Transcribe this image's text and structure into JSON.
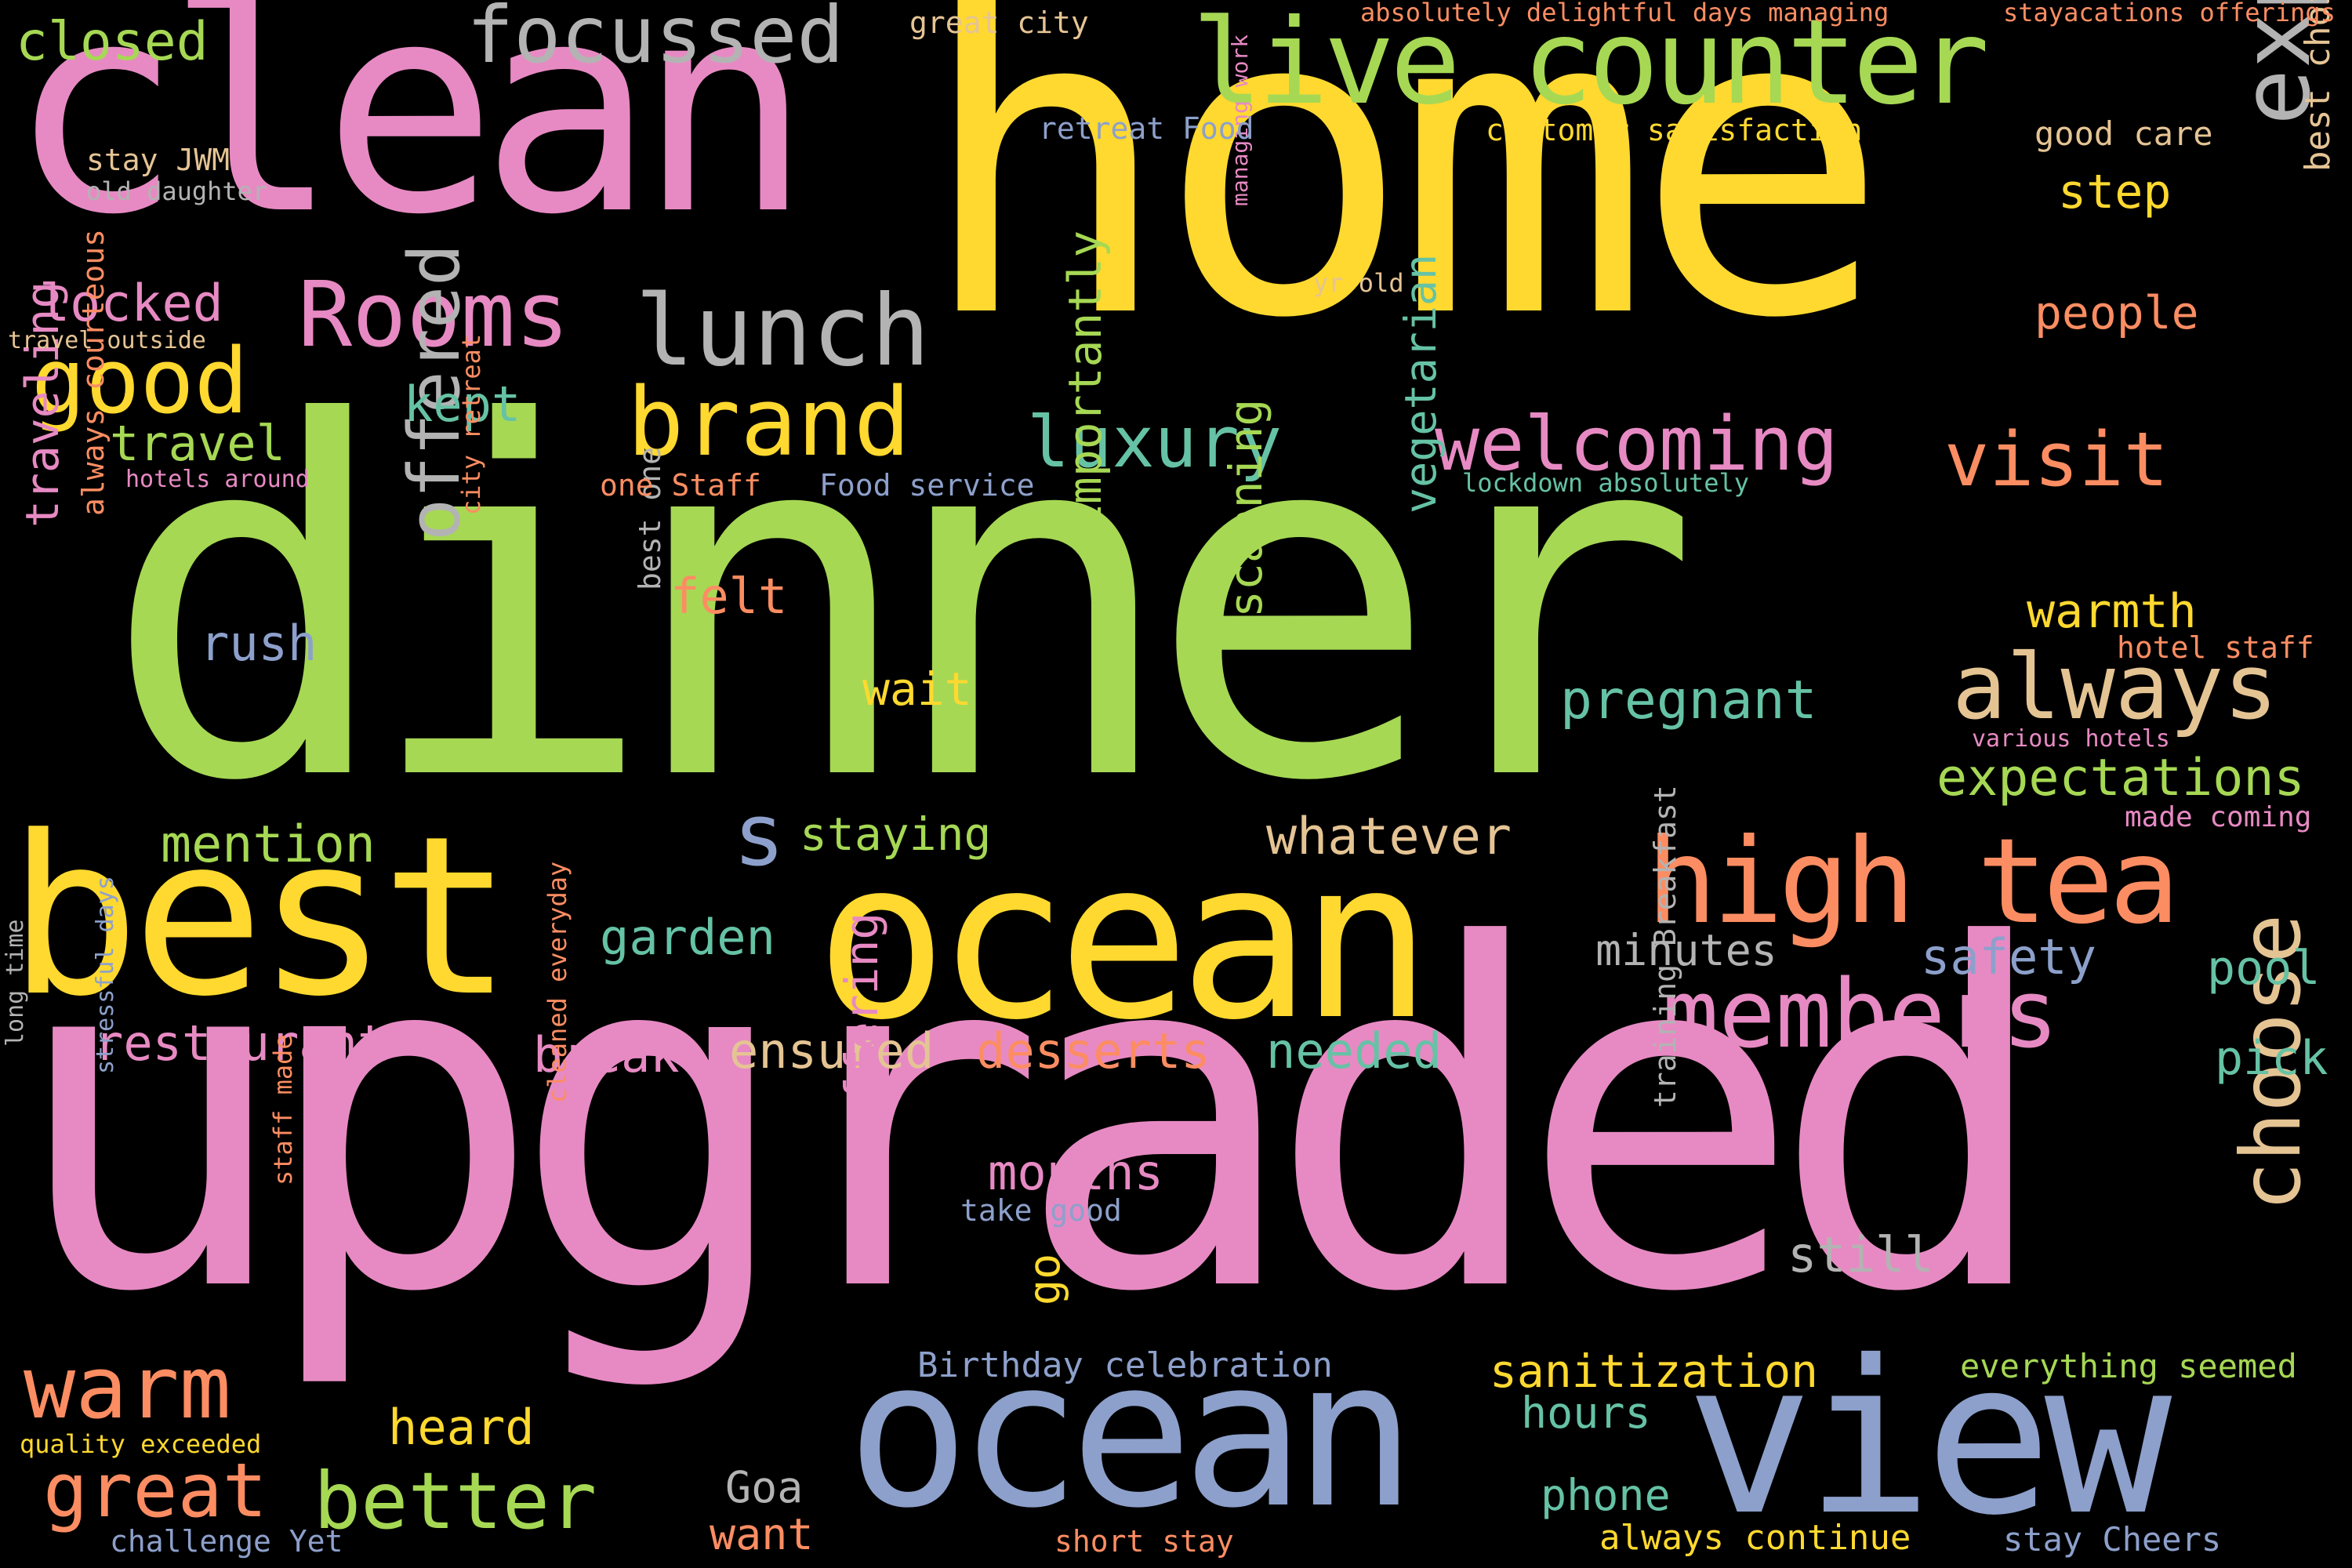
{
  "words": [
    {
      "text": "dinner",
      "color": "#a6d854"
    },
    {
      "text": "upgraded",
      "color": "#e78ac3"
    },
    {
      "text": "home",
      "color": "#ffd92f"
    },
    {
      "text": "clean",
      "color": "#e78ac3"
    },
    {
      "text": "best",
      "color": "#ffd92f"
    },
    {
      "text": "ocean",
      "color": "#ffd92f"
    },
    {
      "text": "ocean",
      "color": "#8da0cb"
    },
    {
      "text": "view",
      "color": "#8da0cb"
    },
    {
      "text": "live counter",
      "color": "#a6d854"
    },
    {
      "text": "high tea",
      "color": "#fc8d62"
    },
    {
      "text": "expensive",
      "color": "#b3b3b3"
    },
    {
      "text": "focussed",
      "color": "#b3b3b3"
    },
    {
      "text": "Rooms",
      "color": "#e78ac3"
    },
    {
      "text": "lunch",
      "color": "#b3b3b3"
    },
    {
      "text": "brand",
      "color": "#ffd92f"
    },
    {
      "text": "good",
      "color": "#ffd92f"
    },
    {
      "text": "welcoming",
      "color": "#e78ac3"
    },
    {
      "text": "luxury",
      "color": "#66c2a5"
    },
    {
      "text": "visit",
      "color": "#fc8d62"
    },
    {
      "text": "always",
      "color": "#e5c494"
    },
    {
      "text": "members",
      "color": "#e78ac3"
    },
    {
      "text": "choose",
      "color": "#e5c494"
    },
    {
      "text": "warm",
      "color": "#fc8d62"
    },
    {
      "text": "great",
      "color": "#fc8d62"
    },
    {
      "text": "better",
      "color": "#a6d854"
    },
    {
      "text": "offered",
      "color": "#b3b3b3"
    },
    {
      "text": "s",
      "color": "#8da0cb"
    },
    {
      "text": "closed",
      "color": "#a6d854"
    },
    {
      "text": "locked",
      "color": "#e78ac3"
    },
    {
      "text": "travel",
      "color": "#a6d854"
    },
    {
      "text": "kept",
      "color": "#66c2a5"
    },
    {
      "text": "pregnant",
      "color": "#66c2a5"
    },
    {
      "text": "expectations",
      "color": "#a6d854"
    },
    {
      "text": "warmth",
      "color": "#ffd92f"
    },
    {
      "text": "step",
      "color": "#ffd92f"
    },
    {
      "text": "people",
      "color": "#fc8d62"
    },
    {
      "text": "good care",
      "color": "#e5c494"
    },
    {
      "text": "best choice",
      "color": "#e5c494"
    },
    {
      "text": "felt",
      "color": "#fc8d62"
    },
    {
      "text": "rush",
      "color": "#8da0cb"
    },
    {
      "text": "wait",
      "color": "#ffd92f"
    },
    {
      "text": "mention",
      "color": "#a6d854"
    },
    {
      "text": "staying",
      "color": "#a6d854"
    },
    {
      "text": "whatever",
      "color": "#e5c494"
    },
    {
      "text": "garden",
      "color": "#66c2a5"
    },
    {
      "text": "minutes",
      "color": "#b3b3b3"
    },
    {
      "text": "safety",
      "color": "#8da0cb"
    },
    {
      "text": "pool",
      "color": "#66c2a5"
    },
    {
      "text": "pick",
      "color": "#66c2a5"
    },
    {
      "text": "restaurant",
      "color": "#e78ac3"
    },
    {
      "text": "break",
      "color": "#e78ac3"
    },
    {
      "text": "ensured",
      "color": "#e5c494"
    },
    {
      "text": "desserts",
      "color": "#fc8d62"
    },
    {
      "text": "needed",
      "color": "#66c2a5"
    },
    {
      "text": "months",
      "color": "#e78ac3"
    },
    {
      "text": "still",
      "color": "#b3b3b3"
    },
    {
      "text": "sanitization",
      "color": "#ffd92f"
    },
    {
      "text": "hours",
      "color": "#66c2a5"
    },
    {
      "text": "heard",
      "color": "#ffd92f"
    },
    {
      "text": "Goa",
      "color": "#b3b3b3"
    },
    {
      "text": "want",
      "color": "#fc8d62"
    },
    {
      "text": "phone",
      "color": "#66c2a5"
    },
    {
      "text": "traveling",
      "color": "#e78ac3"
    },
    {
      "text": "importantly",
      "color": "#a6d854"
    },
    {
      "text": "scanning",
      "color": "#a6d854"
    },
    {
      "text": "vegetarian",
      "color": "#66c2a5"
    },
    {
      "text": "offering",
      "color": "#e78ac3"
    },
    {
      "text": "go",
      "color": "#ffd92f"
    },
    {
      "text": "always courteous",
      "color": "#fc8d62"
    },
    {
      "text": "best one",
      "color": "#b3b3b3"
    },
    {
      "text": "city retreat",
      "color": "#fc8d62"
    },
    {
      "text": "managing work",
      "color": "#e78ac3"
    },
    {
      "text": "great city",
      "color": "#e5c494"
    },
    {
      "text": "absolutely delightful days managing",
      "color": "#fc8d62"
    },
    {
      "text": "stayacations offerings",
      "color": "#fc8d62"
    },
    {
      "text": "retreat Food",
      "color": "#8da0cb"
    },
    {
      "text": "customer satisfaction",
      "color": "#ffd92f"
    },
    {
      "text": "stay JWM",
      "color": "#e5c494"
    },
    {
      "text": "old daughter",
      "color": "#b3b3b3"
    },
    {
      "text": "yr old",
      "color": "#e5c494"
    },
    {
      "text": "travel outside",
      "color": "#e5c494"
    },
    {
      "text": "hotels around",
      "color": "#e78ac3"
    },
    {
      "text": "one Staff",
      "color": "#fc8d62"
    },
    {
      "text": "Food service",
      "color": "#8da0cb"
    },
    {
      "text": "lockdown absolutely",
      "color": "#66c2a5"
    },
    {
      "text": "hotel staff",
      "color": "#fc8d62"
    },
    {
      "text": "various hotels",
      "color": "#e78ac3"
    },
    {
      "text": "made coming",
      "color": "#e78ac3"
    },
    {
      "text": "take good",
      "color": "#8da0cb"
    },
    {
      "text": "Birthday celebration",
      "color": "#8da0cb"
    },
    {
      "text": "long time",
      "color": "#b3b3b3"
    },
    {
      "text": "stressful days",
      "color": "#8da0cb"
    },
    {
      "text": "staff made",
      "color": "#fc8d62"
    },
    {
      "text": "cleaned everyday",
      "color": "#fc8d62"
    },
    {
      "text": "training Breakfast",
      "color": "#b3b3b3"
    },
    {
      "text": "everything seemed",
      "color": "#a6d854"
    },
    {
      "text": "quality exceeded",
      "color": "#ffd92f"
    },
    {
      "text": "challenge Yet",
      "color": "#8da0cb"
    },
    {
      "text": "short stay",
      "color": "#fc8d62"
    },
    {
      "text": "always continue",
      "color": "#ffd92f"
    },
    {
      "text": "stay Cheers",
      "color": "#8da0cb"
    }
  ]
}
